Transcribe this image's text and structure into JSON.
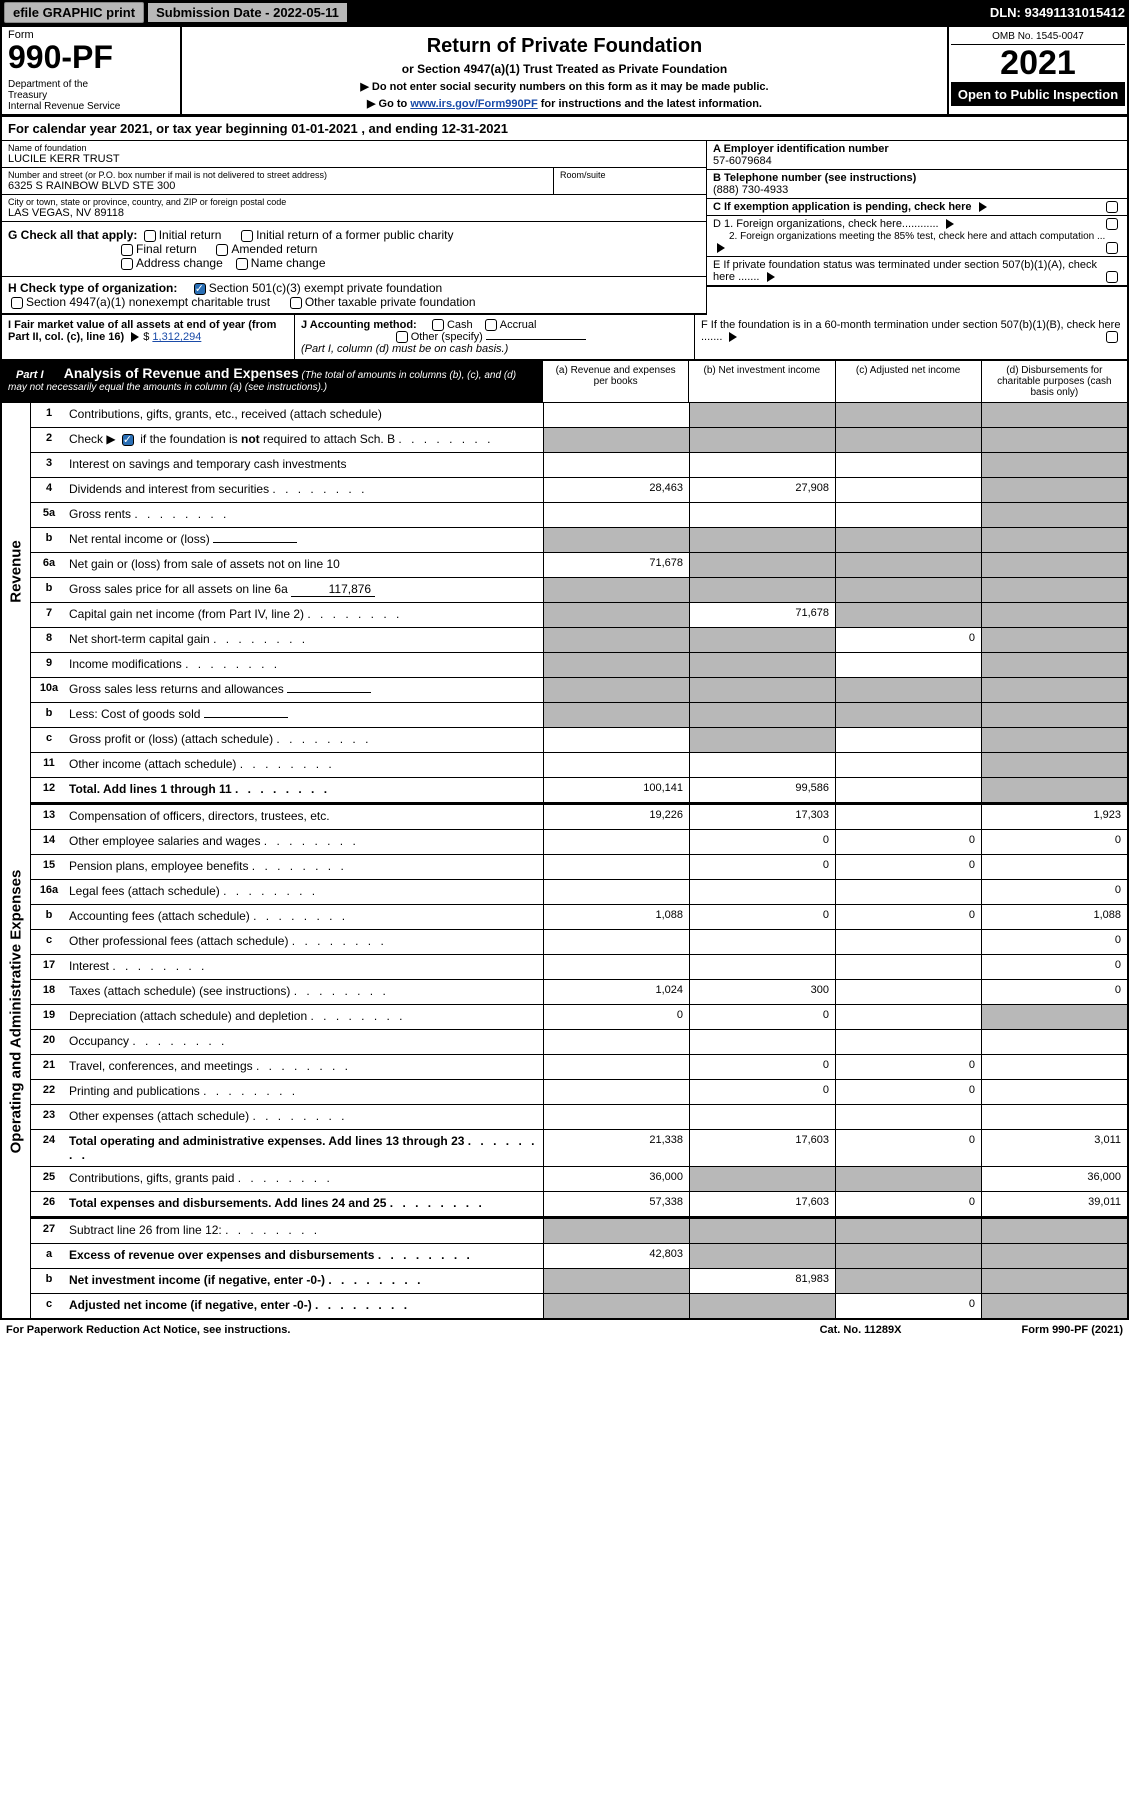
{
  "top_bar": {
    "efile": "efile GRAPHIC print",
    "submission_label": "Submission Date - 2022-05-11",
    "dln": "DLN: 93491131015412"
  },
  "header": {
    "form_label": "Form",
    "form_number": "990-PF",
    "dept": "Department of the Treasury\nInternal Revenue Service",
    "title": "Return of Private Foundation",
    "subtitle": "or Section 4947(a)(1) Trust Treated as Private Foundation",
    "instr1": "▶ Do not enter social security numbers on this form as it may be made public.",
    "instr2_pre": "▶ Go to ",
    "instr2_link": "www.irs.gov/Form990PF",
    "instr2_post": " for instructions and the latest information.",
    "omb": "OMB No. 1545-0047",
    "year": "2021",
    "open": "Open to Public Inspection"
  },
  "cal_year": "For calendar year 2021, or tax year beginning 01-01-2021                    , and ending 12-31-2021",
  "info": {
    "name_label": "Name of foundation",
    "name": "LUCILE KERR TRUST",
    "addr_label": "Number and street (or P.O. box number if mail is not delivered to street address)",
    "addr": "6325 S RAINBOW BLVD STE 300",
    "room_label": "Room/suite",
    "city_label": "City or town, state or province, country, and ZIP or foreign postal code",
    "city": "LAS VEGAS, NV  89118",
    "a_label": "A Employer identification number",
    "a_value": "57-6079684",
    "b_label": "B Telephone number (see instructions)",
    "b_value": "(888) 730-4933",
    "c_label": "C If exemption application is pending, check here",
    "d1_label": "D 1. Foreign organizations, check here............",
    "d2_label": "2. Foreign organizations meeting the 85% test, check here and attach computation ...",
    "e_label": "E  If private foundation status was terminated under section 507(b)(1)(A), check here .......",
    "f_label": "F  If the foundation is in a 60-month termination under section 507(b)(1)(B), check here ......."
  },
  "g": {
    "label": "G Check all that apply:",
    "opts": [
      "Initial return",
      "Initial return of a former public charity",
      "Final return",
      "Amended return",
      "Address change",
      "Name change"
    ]
  },
  "h": {
    "label": "H Check type of organization:",
    "opt1": "Section 501(c)(3) exempt private foundation",
    "opt2": "Section 4947(a)(1) nonexempt charitable trust",
    "opt3": "Other taxable private foundation"
  },
  "i": {
    "label": "I Fair market value of all assets at end of year (from Part II, col. (c), line 16)",
    "value": "1,312,294"
  },
  "j": {
    "label": "J Accounting method:",
    "cash": "Cash",
    "accrual": "Accrual",
    "other": "Other (specify)",
    "note": "(Part I, column (d) must be on cash basis.)"
  },
  "part1": {
    "label": "Part I",
    "title": "Analysis of Revenue and Expenses",
    "note": " (The total of amounts in columns (b), (c), and (d) may not necessarily equal the amounts in column (a) (see instructions).)",
    "col_a": "(a)  Revenue and expenses per books",
    "col_b": "(b)  Net investment income",
    "col_c": "(c)  Adjusted net income",
    "col_d": "(d)  Disbursements for charitable purposes (cash basis only)"
  },
  "sections": {
    "revenue": "Revenue",
    "expenses": "Operating and Administrative Expenses"
  },
  "rows": {
    "r1": {
      "num": "1",
      "desc": "Contributions, gifts, grants, etc., received (attach schedule)",
      "a": "",
      "b_shaded": true,
      "c_shaded": true,
      "d_shaded": true
    },
    "r2": {
      "num": "2",
      "desc_pre": "Check ▶ ",
      "desc_post": " if the foundation is not required to attach Sch. B",
      "all_shaded": true
    },
    "r3": {
      "num": "3",
      "desc": "Interest on savings and temporary cash investments",
      "a": "",
      "b": "",
      "c": "",
      "d_shaded": true
    },
    "r4": {
      "num": "4",
      "desc": "Dividends and interest from securities",
      "a": "28,463",
      "b": "27,908",
      "c": "",
      "d_shaded": true
    },
    "r5a": {
      "num": "5a",
      "desc": "Gross rents",
      "a": "",
      "b": "",
      "c": "",
      "d_shaded": true
    },
    "r5b": {
      "num": "b",
      "desc": "Net rental income or (loss)",
      "all_shaded": true,
      "field": true
    },
    "r6a": {
      "num": "6a",
      "desc": "Net gain or (loss) from sale of assets not on line 10",
      "a": "71,678",
      "b_shaded": true,
      "c_shaded": true,
      "d_shaded": true
    },
    "r6b": {
      "num": "b",
      "desc": "Gross sales price for all assets on line 6a",
      "val": "117,876",
      "all_shaded": true
    },
    "r7": {
      "num": "7",
      "desc": "Capital gain net income (from Part IV, line 2)",
      "a_shaded": true,
      "b": "71,678",
      "c_shaded": true,
      "d_shaded": true
    },
    "r8": {
      "num": "8",
      "desc": "Net short-term capital gain",
      "a_shaded": true,
      "b_shaded": true,
      "c": "0",
      "d_shaded": true
    },
    "r9": {
      "num": "9",
      "desc": "Income modifications",
      "a_shaded": true,
      "b_shaded": true,
      "c": "",
      "d_shaded": true
    },
    "r10a": {
      "num": "10a",
      "desc": "Gross sales less returns and allowances",
      "all_shaded": true,
      "field": true
    },
    "r10b": {
      "num": "b",
      "desc": "Less: Cost of goods sold",
      "all_shaded": true,
      "field": true
    },
    "r10c": {
      "num": "c",
      "desc": "Gross profit or (loss) (attach schedule)",
      "a": "",
      "b_shaded": true,
      "c": "",
      "d_shaded": true
    },
    "r11": {
      "num": "11",
      "desc": "Other income (attach schedule)",
      "a": "",
      "b": "",
      "c": "",
      "d_shaded": true
    },
    "r12": {
      "num": "12",
      "desc": "Total. Add lines 1 through 11",
      "bold": true,
      "a": "100,141",
      "b": "99,586",
      "c": "",
      "d_shaded": true
    },
    "r13": {
      "num": "13",
      "desc": "Compensation of officers, directors, trustees, etc.",
      "a": "19,226",
      "b": "17,303",
      "c": "",
      "d": "1,923"
    },
    "r14": {
      "num": "14",
      "desc": "Other employee salaries and wages",
      "a": "",
      "b": "0",
      "c": "0",
      "d": "0"
    },
    "r15": {
      "num": "15",
      "desc": "Pension plans, employee benefits",
      "a": "",
      "b": "0",
      "c": "0",
      "d": ""
    },
    "r16a": {
      "num": "16a",
      "desc": "Legal fees (attach schedule)",
      "a": "",
      "b": "",
      "c": "",
      "d": "0"
    },
    "r16b": {
      "num": "b",
      "desc": "Accounting fees (attach schedule)",
      "a": "1,088",
      "b": "0",
      "c": "0",
      "d": "1,088"
    },
    "r16c": {
      "num": "c",
      "desc": "Other professional fees (attach schedule)",
      "a": "",
      "b": "",
      "c": "",
      "d": "0"
    },
    "r17": {
      "num": "17",
      "desc": "Interest",
      "a": "",
      "b": "",
      "c": "",
      "d": "0"
    },
    "r18": {
      "num": "18",
      "desc": "Taxes (attach schedule) (see instructions)",
      "a": "1,024",
      "b": "300",
      "c": "",
      "d": "0"
    },
    "r19": {
      "num": "19",
      "desc": "Depreciation (attach schedule) and depletion",
      "a": "0",
      "b": "0",
      "c": "",
      "d_shaded": true
    },
    "r20": {
      "num": "20",
      "desc": "Occupancy",
      "a": "",
      "b": "",
      "c": "",
      "d": ""
    },
    "r21": {
      "num": "21",
      "desc": "Travel, conferences, and meetings",
      "a": "",
      "b": "0",
      "c": "0",
      "d": ""
    },
    "r22": {
      "num": "22",
      "desc": "Printing and publications",
      "a": "",
      "b": "0",
      "c": "0",
      "d": ""
    },
    "r23": {
      "num": "23",
      "desc": "Other expenses (attach schedule)",
      "a": "",
      "b": "",
      "c": "",
      "d": ""
    },
    "r24": {
      "num": "24",
      "desc": "Total operating and administrative expenses. Add lines 13 through 23",
      "bold": true,
      "a": "21,338",
      "b": "17,603",
      "c": "0",
      "d": "3,011"
    },
    "r25": {
      "num": "25",
      "desc": "Contributions, gifts, grants paid",
      "a": "36,000",
      "b_shaded": true,
      "c_shaded": true,
      "d": "36,000"
    },
    "r26": {
      "num": "26",
      "desc": "Total expenses and disbursements. Add lines 24 and 25",
      "bold": true,
      "a": "57,338",
      "b": "17,603",
      "c": "0",
      "d": "39,011"
    },
    "r27": {
      "num": "27",
      "desc": "Subtract line 26 from line 12:",
      "all_shaded": true
    },
    "r27a": {
      "num": "a",
      "desc": "Excess of revenue over expenses and disbursements",
      "bold": true,
      "a": "42,803",
      "b_shaded": true,
      "c_shaded": true,
      "d_shaded": true
    },
    "r27b": {
      "num": "b",
      "desc": "Net investment income (if negative, enter -0-)",
      "bold": true,
      "a_shaded": true,
      "b": "81,983",
      "c_shaded": true,
      "d_shaded": true
    },
    "r27c": {
      "num": "c",
      "desc": "Adjusted net income (if negative, enter -0-)",
      "bold": true,
      "a_shaded": true,
      "b_shaded": true,
      "c": "0",
      "d_shaded": true
    }
  },
  "footer": {
    "left": "For Paperwork Reduction Act Notice, see instructions.",
    "center": "Cat. No. 11289X",
    "right": "Form 990-PF (2021)"
  }
}
